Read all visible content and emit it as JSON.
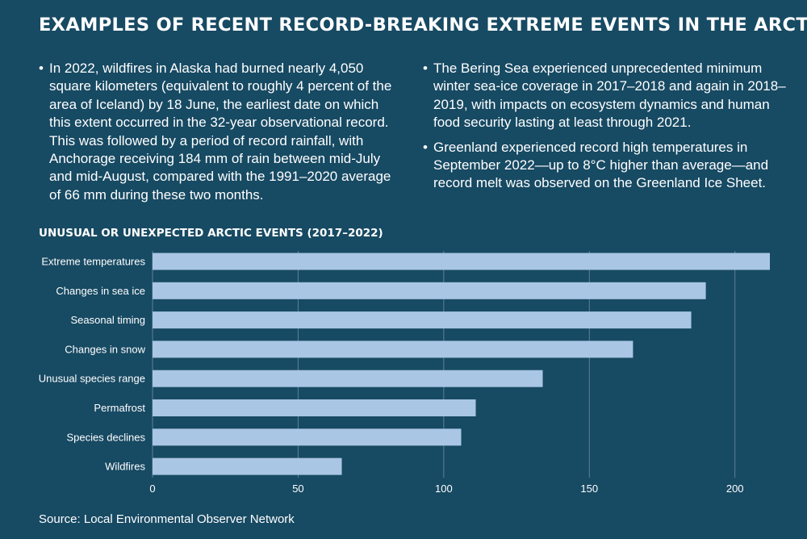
{
  "header": {
    "title": "EXAMPLES OF RECENT RECORD-BREAKING EXTREME EVENTS IN THE ARCTIC"
  },
  "bullets": {
    "left": [
      "In 2022, wildfires in Alaska had burned nearly 4,050 square kilometers (equivalent to roughly 4 percent of the area of Iceland) by 18 June, the earliest date on which this extent occurred in the 32-year observational record. This was followed by a period of record rainfall, with Anchorage receiving 184 mm of rain between mid-July and mid-August, compared with the 1991–2020 average of 66 mm during these two months."
    ],
    "right": [
      "The Bering Sea experienced unprecedented minimum winter sea-ice coverage in 2017–2018 and again in 2018–2019, with impacts on ecosystem dynamics and human food security lasting at least through 2021.",
      "Greenland experienced record high temperatures in September 2022—up to 8°C higher than average—and record melt was observed on the Greenland Ice Sheet."
    ],
    "marker": "•"
  },
  "chart_data": {
    "type": "bar",
    "orientation": "horizontal",
    "title": "UNUSUAL OR UNEXPECTED ARCTIC EVENTS (2017–2022)",
    "categories": [
      "Extreme temperatures",
      "Changes in sea ice",
      "Seasonal timing",
      "Changes in snow",
      "Unusual species range",
      "Permafrost",
      "Species declines",
      "Wildfires"
    ],
    "values": [
      212,
      190,
      185,
      165,
      134,
      111,
      106,
      65
    ],
    "xlim": [
      0,
      212
    ],
    "xticks": [
      0,
      50,
      100,
      150,
      200
    ],
    "xlabel": "",
    "ylabel": "",
    "grid": true,
    "bar_color": "#a9c6e4",
    "grid_color": "#5d8196"
  },
  "footer": {
    "source": "Source: Local Environmental Observer Network"
  },
  "colors": {
    "background": "#174a63",
    "text": "#ffffff"
  }
}
